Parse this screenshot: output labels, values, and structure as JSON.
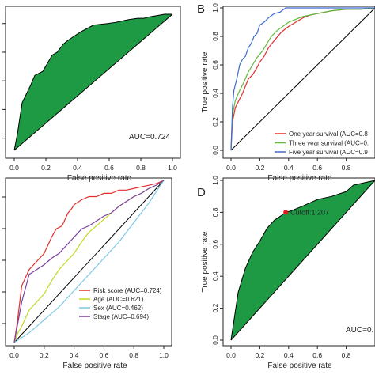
{
  "chart_data": [
    {
      "panel": "A",
      "panel_letter": "",
      "type": "line",
      "xlabel": "False positive rate",
      "ylabel": "",
      "xlim": [
        0,
        1
      ],
      "ylim": [
        0,
        1
      ],
      "xticks": [
        "0.0",
        "0.2",
        "0.4",
        "0.6",
        "0.8",
        "1.0"
      ],
      "fill_color": "#1f9a44",
      "annotation": "AUC=0.724",
      "series": [
        {
          "color": "#000000",
          "x": [
            0.0,
            0.02,
            0.05,
            0.1,
            0.13,
            0.18,
            0.2,
            0.24,
            0.27,
            0.31,
            0.33,
            0.38,
            0.42,
            0.5,
            0.58,
            0.64,
            0.68,
            0.72,
            0.78,
            0.82,
            0.85,
            0.9,
            0.95,
            1.0
          ],
          "y": [
            0.0,
            0.12,
            0.35,
            0.47,
            0.55,
            0.58,
            0.62,
            0.7,
            0.72,
            0.78,
            0.8,
            0.84,
            0.87,
            0.92,
            0.93,
            0.94,
            0.95,
            0.96,
            0.97,
            0.97,
            0.98,
            0.99,
            1.0,
            1.0
          ]
        }
      ]
    },
    {
      "panel": "B",
      "panel_letter": "B",
      "type": "line",
      "xlabel": "False positive rate",
      "ylabel": "True positive rate",
      "xlim": [
        0,
        1
      ],
      "ylim": [
        0,
        1
      ],
      "xticks": [
        "0.0",
        "0.2",
        "0.4",
        "0.6",
        "0.8"
      ],
      "yticks": [
        "0.0",
        "0.2",
        "0.4",
        "0.6",
        "0.8",
        "1.0"
      ],
      "legend_position": "bottom-right",
      "series": [
        {
          "name": "One year survival (AUC=0.8",
          "color": "#e0302e",
          "x": [
            0.0,
            0.01,
            0.03,
            0.05,
            0.08,
            0.1,
            0.12,
            0.15,
            0.18,
            0.2,
            0.23,
            0.26,
            0.3,
            0.35,
            0.4,
            0.45,
            0.5,
            0.55,
            0.6,
            0.65,
            0.7,
            0.8,
            0.9,
            1.0
          ],
          "y": [
            0.0,
            0.2,
            0.3,
            0.34,
            0.4,
            0.45,
            0.5,
            0.53,
            0.58,
            0.62,
            0.66,
            0.72,
            0.77,
            0.83,
            0.87,
            0.9,
            0.93,
            0.95,
            0.96,
            0.97,
            0.98,
            0.99,
            0.99,
            1.0
          ]
        },
        {
          "name": "Three year survival (AUC=0.",
          "color": "#5dbb3a",
          "x": [
            0.0,
            0.01,
            0.03,
            0.06,
            0.09,
            0.12,
            0.15,
            0.18,
            0.22,
            0.25,
            0.28,
            0.32,
            0.36,
            0.4,
            0.45,
            0.5,
            0.55,
            0.6,
            0.7,
            0.8,
            0.9,
            1.0
          ],
          "y": [
            0.0,
            0.25,
            0.35,
            0.42,
            0.48,
            0.55,
            0.6,
            0.65,
            0.7,
            0.75,
            0.8,
            0.84,
            0.87,
            0.9,
            0.92,
            0.94,
            0.95,
            0.96,
            0.98,
            0.99,
            0.99,
            1.0
          ]
        },
        {
          "name": "Five year survival (AUC=0.9",
          "color": "#3c6bd0",
          "x": [
            0.0,
            0.01,
            0.02,
            0.04,
            0.06,
            0.08,
            0.1,
            0.12,
            0.14,
            0.16,
            0.18,
            0.2,
            0.23,
            0.26,
            0.3,
            0.34,
            0.38,
            0.42,
            0.46,
            0.5,
            0.55,
            0.6,
            0.7,
            0.8,
            0.9,
            1.0
          ],
          "y": [
            0.0,
            0.3,
            0.42,
            0.5,
            0.6,
            0.64,
            0.66,
            0.72,
            0.75,
            0.8,
            0.82,
            0.88,
            0.9,
            0.93,
            0.96,
            0.97,
            1.0,
            1.0,
            1.0,
            1.0,
            1.0,
            1.0,
            1.0,
            1.0,
            1.0,
            1.0
          ]
        }
      ]
    },
    {
      "panel": "C",
      "panel_letter": "",
      "type": "line",
      "xlabel": "False positive rate",
      "ylabel": "",
      "xlim": [
        0,
        1
      ],
      "ylim": [
        0,
        1
      ],
      "xticks": [
        "0.0",
        "0.2",
        "0.4",
        "0.6",
        "0.8",
        "1.0"
      ],
      "legend_position": "bottom-right",
      "series": [
        {
          "name": "Risk score (AUC=0.724)",
          "color": "#e0302e",
          "x": [
            0.0,
            0.02,
            0.05,
            0.1,
            0.15,
            0.2,
            0.25,
            0.28,
            0.32,
            0.36,
            0.38,
            0.4,
            0.45,
            0.5,
            0.55,
            0.6,
            0.65,
            0.7,
            0.75,
            0.8,
            0.85,
            0.9,
            0.95,
            1.0
          ],
          "y": [
            0.0,
            0.12,
            0.35,
            0.45,
            0.5,
            0.55,
            0.65,
            0.7,
            0.72,
            0.8,
            0.82,
            0.85,
            0.88,
            0.9,
            0.9,
            0.92,
            0.92,
            0.94,
            0.94,
            0.95,
            0.96,
            0.97,
            0.98,
            1.0
          ]
        },
        {
          "name": "Age (AUC=0.621)",
          "color": "#c4d820",
          "x": [
            0.0,
            0.02,
            0.05,
            0.1,
            0.15,
            0.2,
            0.25,
            0.3,
            0.35,
            0.4,
            0.45,
            0.5,
            0.55,
            0.6,
            0.65,
            0.7,
            0.75,
            0.8,
            0.85,
            0.9,
            0.95,
            1.0
          ],
          "y": [
            0.0,
            0.05,
            0.1,
            0.2,
            0.25,
            0.3,
            0.38,
            0.45,
            0.5,
            0.55,
            0.62,
            0.68,
            0.72,
            0.76,
            0.8,
            0.84,
            0.87,
            0.9,
            0.92,
            0.95,
            0.97,
            1.0
          ]
        },
        {
          "name": "Sex (AUC=0.462)",
          "color": "#7cc8e6",
          "x": [
            0.0,
            0.1,
            0.2,
            0.3,
            0.4,
            0.5,
            0.6,
            0.7,
            0.8,
            0.9,
            1.0
          ],
          "y": [
            0.0,
            0.06,
            0.14,
            0.22,
            0.32,
            0.42,
            0.52,
            0.62,
            0.74,
            0.86,
            1.0
          ]
        },
        {
          "name": "Stage (AUC=0.694)",
          "color": "#7b3fa0",
          "x": [
            0.0,
            0.05,
            0.1,
            0.15,
            0.2,
            0.25,
            0.3,
            0.35,
            0.4,
            0.45,
            0.5,
            0.55,
            0.6,
            0.65,
            0.7,
            0.75,
            0.8,
            0.85,
            0.9,
            0.95,
            1.0
          ],
          "y": [
            0.0,
            0.25,
            0.42,
            0.45,
            0.48,
            0.52,
            0.55,
            0.6,
            0.65,
            0.7,
            0.72,
            0.75,
            0.78,
            0.8,
            0.84,
            0.87,
            0.9,
            0.92,
            0.95,
            0.97,
            1.0
          ]
        }
      ]
    },
    {
      "panel": "D",
      "panel_letter": "D",
      "type": "line",
      "xlabel": "False positive rate",
      "ylabel": "True positive rate",
      "xlim": [
        0,
        1
      ],
      "ylim": [
        0,
        1
      ],
      "xticks": [
        "0.0",
        "0.2",
        "0.4",
        "0.6",
        "0.8"
      ],
      "yticks": [
        "0.0",
        "0.2",
        "0.4",
        "0.6",
        "0.8",
        "1.0"
      ],
      "fill_color": "#1f9a44",
      "annotation": "AUC=0.",
      "cutoff": {
        "x": 0.38,
        "y": 0.8,
        "label": "Cutoff:1.207",
        "color": "#e01818"
      },
      "series": [
        {
          "color": "#000000",
          "x": [
            0.0,
            0.02,
            0.05,
            0.1,
            0.15,
            0.2,
            0.25,
            0.3,
            0.35,
            0.38,
            0.42,
            0.5,
            0.6,
            0.7,
            0.8,
            0.85,
            0.9,
            0.95,
            1.0
          ],
          "y": [
            0.0,
            0.12,
            0.3,
            0.45,
            0.55,
            0.62,
            0.7,
            0.75,
            0.78,
            0.8,
            0.81,
            0.84,
            0.88,
            0.9,
            0.93,
            0.97,
            0.98,
            0.99,
            1.0
          ]
        }
      ]
    }
  ]
}
